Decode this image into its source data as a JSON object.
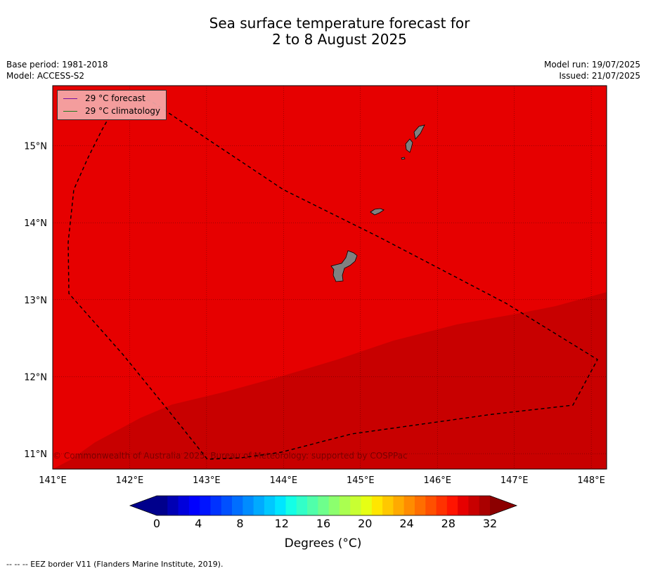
{
  "title": {
    "line1": "Sea surface temperature forecast for",
    "line2": "2 to 8 August 2025"
  },
  "meta_left": {
    "base_period": "Base period: 1981-2018",
    "model": "Model: ACCESS-S2"
  },
  "meta_right": {
    "model_run": "Model run: 19/07/2025",
    "issued": "Issued: 21/07/2025"
  },
  "legend": {
    "forecast_label": "29 °C  forecast",
    "forecast_color": "#7a0fa0",
    "climatology_label": "29 °C  climatology",
    "climatology_color": "#1f7a1f"
  },
  "copyright": "© Commonwealth of Australia 2025, Bureau of Meteorology: supported by COSPPac",
  "map": {
    "lon_range": [
      141.0,
      148.2
    ],
    "lat_range": [
      10.8,
      15.78
    ],
    "lon_ticks": [
      "141°E",
      "142°E",
      "143°E",
      "144°E",
      "145°E",
      "146°E",
      "147°E",
      "148°E"
    ],
    "lat_ticks": [
      "11°N",
      "12°N",
      "13°N",
      "14°N",
      "15°N"
    ],
    "sst_zone_colors": {
      "warmer": "#e60000",
      "warmest": "#c80000"
    },
    "land_color": "#808080",
    "grid": true
  },
  "colorbar": {
    "tick_labels": [
      "0",
      "4",
      "8",
      "12",
      "16",
      "20",
      "24",
      "28",
      "32"
    ],
    "label": "Degrees (°C)",
    "colors": [
      "#00008c",
      "#0000b4",
      "#0000dc",
      "#0000ff",
      "#0014ff",
      "#0032ff",
      "#0050ff",
      "#006eff",
      "#008cff",
      "#00aaff",
      "#00c8ff",
      "#00e6ff",
      "#14ffe6",
      "#32ffc8",
      "#50ffaa",
      "#6eff8c",
      "#8cff6e",
      "#aaff50",
      "#c8ff32",
      "#e6ff14",
      "#ffe600",
      "#ffc800",
      "#ffaa00",
      "#ff8c00",
      "#ff6e00",
      "#ff5000",
      "#ff3200",
      "#ff1400",
      "#e60000",
      "#c80000",
      "#aa0000"
    ],
    "under_color": "#00008c",
    "over_color": "#8c0000"
  },
  "footnote": "--  --  -- EEZ border V11 (Flanders Marine Institute, 2019)."
}
